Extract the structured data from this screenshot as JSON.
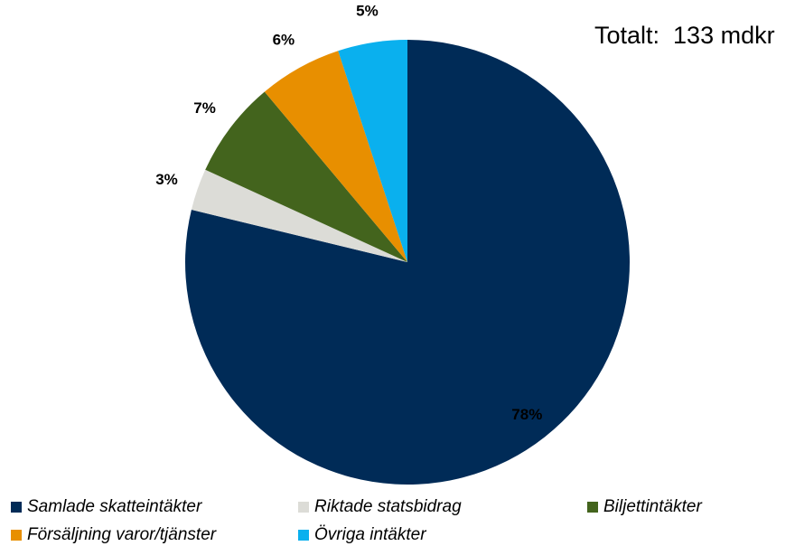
{
  "total_label": "Totalt:  133 mdkr",
  "chart_data": {
    "type": "pie",
    "start_angle_deg": 0,
    "direction": "clockwise",
    "slices": [
      {
        "label": "Samlade skatteintäkter",
        "value": 78,
        "value_label": "78%",
        "color": "#002b57"
      },
      {
        "label": "Riktade statsbidrag",
        "value": 3,
        "value_label": "3%",
        "color": "#dcdcd7"
      },
      {
        "label": "Biljettintäkter",
        "value": 7,
        "value_label": "7%",
        "color": "#43641d"
      },
      {
        "label": "Försäljning varor/tjänster",
        "value": 6,
        "value_label": "6%",
        "color": "#e88f00"
      },
      {
        "label": "Övriga intäkter",
        "value": 5,
        "value_label": "5%",
        "color": "#0ab0ee"
      }
    ],
    "legend_position": "bottom"
  }
}
